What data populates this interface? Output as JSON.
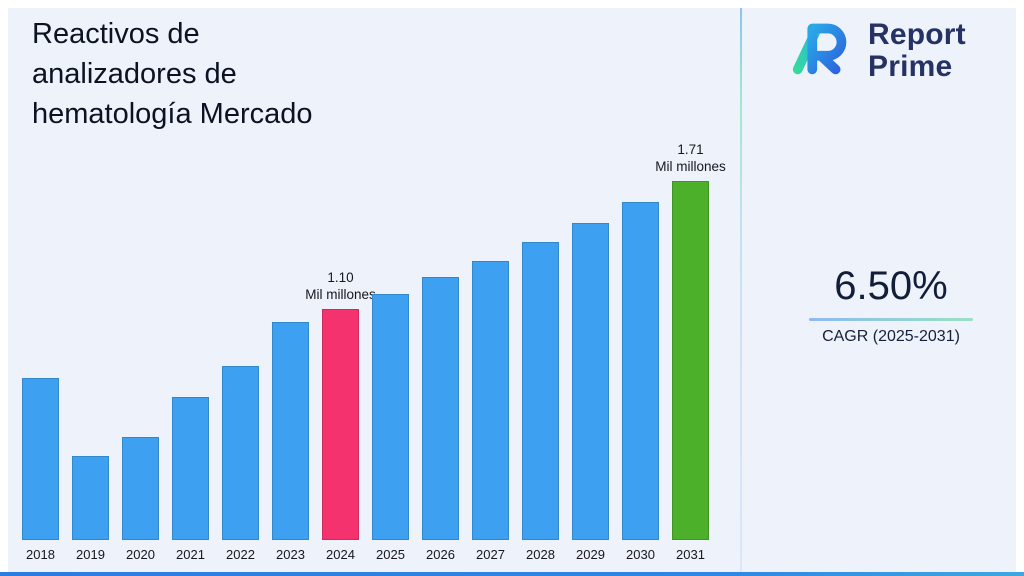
{
  "page": {
    "title_lines": [
      "Reactivos de",
      "analizadores de",
      "hematología Mercado"
    ]
  },
  "logo": {
    "line1": "Report",
    "line2": "Prime"
  },
  "stats": {
    "cagr_value": "6.50%",
    "cagr_label": "CAGR (2025-2031)"
  },
  "colors": {
    "background": "#edf2fb",
    "accent_bottom_bar": "#2b7ce3",
    "logo_navy": "#263263",
    "title_text": "#0c1222"
  },
  "chart_data": {
    "type": "bar",
    "title": "Reactivos de analizadores de hematología Mercado",
    "unit": "Mil millones",
    "categories": [
      "2018",
      "2019",
      "2020",
      "2021",
      "2022",
      "2023",
      "2024",
      "2025",
      "2026",
      "2027",
      "2028",
      "2029",
      "2030",
      "2031"
    ],
    "values": [
      0.77,
      0.4,
      0.49,
      0.68,
      0.83,
      1.04,
      1.1,
      1.17,
      1.25,
      1.33,
      1.42,
      1.51,
      1.61,
      1.71
    ],
    "ylim": [
      0,
      1.8
    ],
    "grid": false,
    "legend": false,
    "xlabel": "",
    "ylabel": "",
    "colors": {
      "default": "#3da0f0"
    },
    "bar_colors": {
      "2024": "#f4326e",
      "2031": "#4cb02a"
    },
    "annotations": [
      {
        "category": "2024",
        "lines": [
          "1.10",
          "Mil millones"
        ]
      },
      {
        "category": "2031",
        "lines": [
          "1.71",
          "Mil millones"
        ]
      }
    ]
  }
}
